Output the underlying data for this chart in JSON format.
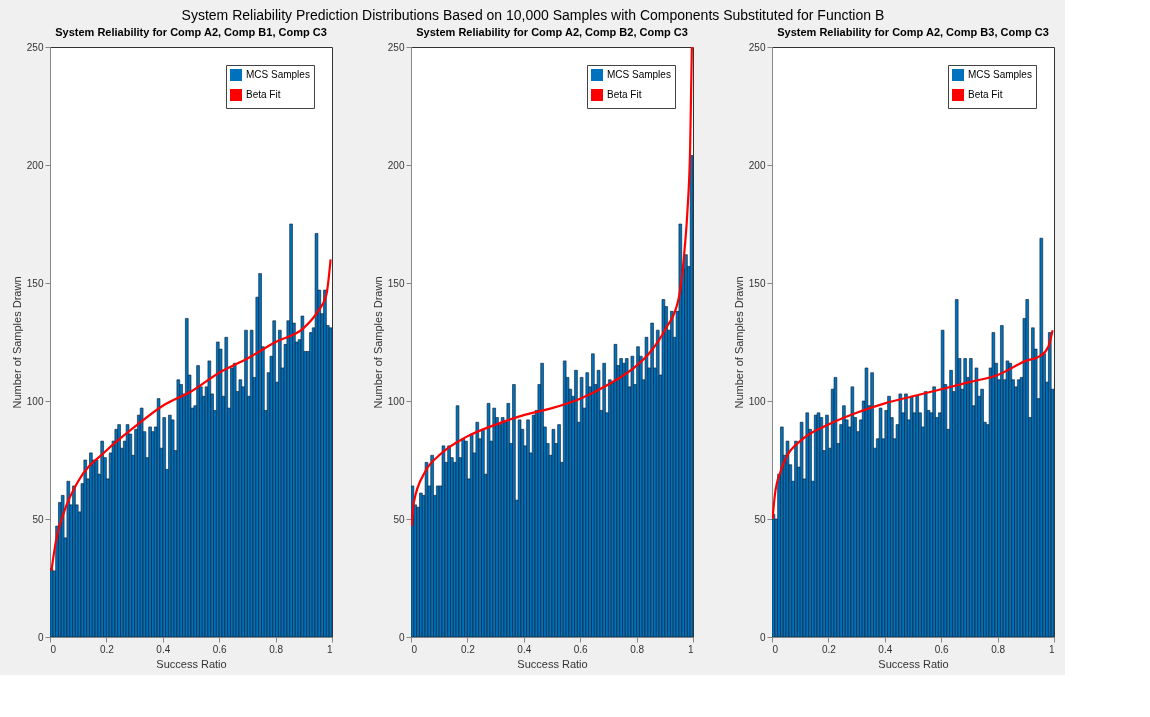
{
  "chart_data": [
    {
      "type": "histogram",
      "title": "System Reliability for Comp A2, Comp B1, Comp C3",
      "xlabel": "Success Ratio",
      "ylabel": "Number of Samples Drawn",
      "annotations": [
        "System Reliability Prediction Distributions Based on 10,000 Samples with Components Substituted for Function B"
      ],
      "bins": [
        0,
        0.01,
        0.02,
        0.03,
        0.04,
        0.05,
        0.06,
        0.07,
        0.08,
        0.09,
        0.1,
        0.11,
        0.12,
        0.13,
        0.14,
        0.15,
        0.16,
        0.17,
        0.18,
        0.19,
        0.2,
        0.21,
        0.22,
        0.23,
        0.24,
        0.25,
        0.26,
        0.27,
        0.28,
        0.29,
        0.3,
        0.31,
        0.32,
        0.33,
        0.34,
        0.35,
        0.36,
        0.37,
        0.38,
        0.39,
        0.4,
        0.41,
        0.42,
        0.43,
        0.44,
        0.45,
        0.46,
        0.47,
        0.48,
        0.49,
        0.5,
        0.51,
        0.52,
        0.53,
        0.54,
        0.55,
        0.56,
        0.57,
        0.58,
        0.59,
        0.6,
        0.61,
        0.62,
        0.63,
        0.64,
        0.65,
        0.66,
        0.67,
        0.68,
        0.69,
        0.7,
        0.71,
        0.72,
        0.73,
        0.74,
        0.75,
        0.76,
        0.77,
        0.78,
        0.79,
        0.8,
        0.81,
        0.82,
        0.83,
        0.84,
        0.85,
        0.86,
        0.87,
        0.88,
        0.89,
        0.9,
        0.91,
        0.92,
        0.93,
        0.94,
        0.95,
        0.96,
        0.97,
        0.98,
        0.99,
        1
      ],
      "series": [
        {
          "name": "MCS Samples",
          "color": "#0072bd",
          "values": [
            29,
            28,
            47,
            57,
            60,
            42,
            66,
            56,
            64,
            56,
            53,
            65,
            75,
            67,
            78,
            75,
            75,
            69,
            83,
            76,
            67,
            78,
            83,
            88,
            90,
            80,
            83,
            90,
            86,
            77,
            88,
            94,
            97,
            87,
            76,
            89,
            87,
            89,
            101,
            80,
            93,
            71,
            94,
            92,
            79,
            109,
            107,
            103,
            135,
            111,
            97,
            98,
            115,
            106,
            102,
            106,
            117,
            103,
            96,
            125,
            122,
            102,
            127,
            97,
            114,
            116,
            104,
            109,
            106,
            130,
            102,
            130,
            110,
            144,
            154,
            123,
            96,
            112,
            119,
            134,
            108,
            130,
            114,
            124,
            134,
            175,
            133,
            125,
            126,
            136,
            121,
            121,
            129,
            131,
            171,
            147,
            137,
            147,
            132,
            131
          ]
        },
        {
          "name": "Beta Fit",
          "type": "line",
          "color": "#ff0000",
          "x": [
            0.005,
            0.02,
            0.05,
            0.1,
            0.2,
            0.3,
            0.4,
            0.5,
            0.6,
            0.7,
            0.8,
            0.9,
            0.95,
            0.98,
            0.995
          ],
          "values": [
            28,
            40,
            53,
            66,
            79,
            89,
            98,
            104,
            112,
            118,
            125,
            131,
            138,
            145,
            160
          ]
        }
      ],
      "xlim": [
        0,
        1
      ],
      "xticks": [
        0,
        0.2,
        0.4,
        0.6,
        0.8,
        1
      ],
      "ylim": [
        0,
        250
      ],
      "yticks": [
        0,
        50,
        100,
        150,
        200,
        250
      ],
      "legend": "top right"
    },
    {
      "type": "histogram",
      "title": "System Reliability for Comp A2, Comp B2, Comp C3",
      "xlabel": "Success Ratio",
      "ylabel": "Number of Samples Drawn",
      "bins": [
        0,
        0.01,
        0.02,
        0.03,
        0.04,
        0.05,
        0.06,
        0.07,
        0.08,
        0.09,
        0.1,
        0.11,
        0.12,
        0.13,
        0.14,
        0.15,
        0.16,
        0.17,
        0.18,
        0.19,
        0.2,
        0.21,
        0.22,
        0.23,
        0.24,
        0.25,
        0.26,
        0.27,
        0.28,
        0.29,
        0.3,
        0.31,
        0.32,
        0.33,
        0.34,
        0.35,
        0.36,
        0.37,
        0.38,
        0.39,
        0.4,
        0.41,
        0.42,
        0.43,
        0.44,
        0.45,
        0.46,
        0.47,
        0.48,
        0.49,
        0.5,
        0.51,
        0.52,
        0.53,
        0.54,
        0.55,
        0.56,
        0.57,
        0.58,
        0.59,
        0.6,
        0.61,
        0.62,
        0.63,
        0.64,
        0.65,
        0.66,
        0.67,
        0.68,
        0.69,
        0.7,
        0.71,
        0.72,
        0.73,
        0.74,
        0.75,
        0.76,
        0.77,
        0.78,
        0.79,
        0.8,
        0.81,
        0.82,
        0.83,
        0.84,
        0.85,
        0.86,
        0.87,
        0.88,
        0.89,
        0.9,
        0.91,
        0.92,
        0.93,
        0.94,
        0.95,
        0.96,
        0.97,
        0.98,
        0.99,
        1
      ],
      "series": [
        {
          "name": "MCS Samples",
          "color": "#0072bd",
          "values": [
            64,
            56,
            55,
            61,
            60,
            74,
            64,
            77,
            60,
            64,
            64,
            81,
            74,
            81,
            76,
            74,
            98,
            76,
            84,
            83,
            67,
            86,
            78,
            91,
            84,
            88,
            69,
            99,
            83,
            97,
            93,
            90,
            93,
            91,
            99,
            82,
            107,
            58,
            92,
            88,
            81,
            92,
            78,
            94,
            96,
            107,
            116,
            89,
            82,
            77,
            88,
            82,
            90,
            74,
            117,
            110,
            105,
            102,
            113,
            91,
            110,
            97,
            112,
            106,
            120,
            107,
            113,
            96,
            116,
            95,
            109,
            108,
            124,
            115,
            118,
            116,
            118,
            106,
            119,
            107,
            123,
            119,
            109,
            127,
            114,
            133,
            114,
            130,
            111,
            143,
            140,
            130,
            138,
            127,
            138,
            175,
            156,
            162,
            157,
            204
          ]
        },
        {
          "name": "Beta Fit",
          "type": "line",
          "color": "#ff0000",
          "x": [
            0.002,
            0.01,
            0.05,
            0.1,
            0.2,
            0.3,
            0.4,
            0.5,
            0.6,
            0.7,
            0.8,
            0.85,
            0.9,
            0.95,
            0.97,
            0.98,
            0.99,
            0.996
          ],
          "values": [
            47,
            57,
            70,
            77,
            85,
            90,
            94,
            97,
            101,
            107,
            115,
            121,
            130,
            144,
            164,
            180,
            208,
            250
          ]
        }
      ],
      "xlim": [
        0,
        1
      ],
      "xticks": [
        0,
        0.2,
        0.4,
        0.6,
        0.8,
        1
      ],
      "ylim": [
        0,
        250
      ],
      "yticks": [
        0,
        50,
        100,
        150,
        200,
        250
      ],
      "legend": "top right"
    },
    {
      "type": "histogram",
      "title": "System Reliability for Comp A2, Comp B3, Comp C3",
      "xlabel": "Success Ratio",
      "ylabel": "Number of Samples Drawn",
      "bins": [
        0,
        0.01,
        0.02,
        0.03,
        0.04,
        0.05,
        0.06,
        0.07,
        0.08,
        0.09,
        0.1,
        0.11,
        0.12,
        0.13,
        0.14,
        0.15,
        0.16,
        0.17,
        0.18,
        0.19,
        0.2,
        0.21,
        0.22,
        0.23,
        0.24,
        0.25,
        0.26,
        0.27,
        0.28,
        0.29,
        0.3,
        0.31,
        0.32,
        0.33,
        0.34,
        0.35,
        0.36,
        0.37,
        0.38,
        0.39,
        0.4,
        0.41,
        0.42,
        0.43,
        0.44,
        0.45,
        0.46,
        0.47,
        0.48,
        0.49,
        0.5,
        0.51,
        0.52,
        0.53,
        0.54,
        0.55,
        0.56,
        0.57,
        0.58,
        0.59,
        0.6,
        0.61,
        0.62,
        0.63,
        0.64,
        0.65,
        0.66,
        0.67,
        0.68,
        0.69,
        0.7,
        0.71,
        0.72,
        0.73,
        0.74,
        0.75,
        0.76,
        0.77,
        0.78,
        0.79,
        0.8,
        0.81,
        0.82,
        0.83,
        0.84,
        0.85,
        0.86,
        0.87,
        0.88,
        0.89,
        0.9,
        0.91,
        0.92,
        0.93,
        0.94,
        0.95,
        0.96,
        0.97,
        0.98,
        0.99,
        1
      ],
      "series": [
        {
          "name": "MCS Samples",
          "color": "#0072bd",
          "values": [
            52,
            50,
            69,
            89,
            77,
            83,
            73,
            66,
            83,
            72,
            91,
            67,
            95,
            88,
            66,
            94,
            95,
            93,
            79,
            94,
            80,
            105,
            110,
            82,
            90,
            98,
            92,
            89,
            106,
            93,
            87,
            92,
            100,
            114,
            98,
            112,
            80,
            84,
            97,
            84,
            96,
            102,
            93,
            84,
            90,
            103,
            95,
            103,
            92,
            102,
            95,
            102,
            95,
            89,
            104,
            96,
            95,
            106,
            93,
            95,
            130,
            107,
            88,
            113,
            104,
            143,
            118,
            105,
            118,
            110,
            118,
            98,
            114,
            102,
            105,
            91,
            90,
            114,
            129,
            116,
            109,
            132,
            109,
            117,
            116,
            109,
            106,
            109,
            110,
            135,
            143,
            93,
            131,
            122,
            101,
            169,
            120,
            108,
            129,
            105
          ]
        },
        {
          "name": "Beta Fit",
          "type": "line",
          "color": "#ff0000",
          "x": [
            0.002,
            0.01,
            0.03,
            0.05,
            0.1,
            0.2,
            0.3,
            0.4,
            0.5,
            0.6,
            0.7,
            0.8,
            0.9,
            0.95,
            0.98,
            0.995
          ],
          "values": [
            50,
            60,
            70,
            76,
            83,
            90,
            95,
            99,
            102,
            105,
            108,
            111,
            117,
            119,
            123,
            130
          ]
        }
      ],
      "xlim": [
        0,
        1
      ],
      "xticks": [
        0,
        0.2,
        0.4,
        0.6,
        0.8,
        1
      ],
      "ylim": [
        0,
        250
      ],
      "yticks": [
        0,
        50,
        100,
        150,
        200,
        250
      ],
      "legend": "top right"
    }
  ]
}
